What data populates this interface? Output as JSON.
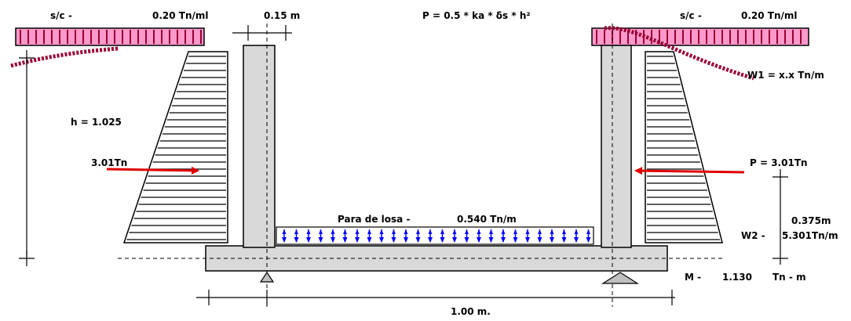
{
  "colors": {
    "outline": "#000000",
    "concrete": "#d9d9d9",
    "surcharge_fill": "#ff99cc",
    "surcharge_line": "#990033",
    "soil_hatch": "#990033",
    "arrow_red": "#e00000",
    "floor_fill": "#ffffff",
    "floor_arrow": "#0000ff",
    "hatch_lines": "#000000",
    "support_fill": "#c0c0c0"
  },
  "left_top": {
    "sc_label": "s/c -",
    "sc_value": "0.20 Tn/ml"
  },
  "right_top": {
    "sc_label": "s/c -",
    "sc_value": "0.20 Tn/ml"
  },
  "wall_thickness": "0.15 m",
  "formula": "P = 0.5 * ka * δs * h²",
  "height_label": "h = 1.025",
  "left_force": "3.01Tn",
  "right_force": "P = 3.01Tn",
  "w1_label": "W1 = x.x Tn/m",
  "floor_label": "Para de losa -",
  "floor_value": "0.540 Tn/m",
  "lever_arm": "0.375m",
  "w2_label": "W2 -",
  "w2_value": "5.301Tn/m",
  "moment_label": "M -",
  "moment_value": "1.130",
  "moment_unit": "Tn - m",
  "span_label": "1.00 m."
}
